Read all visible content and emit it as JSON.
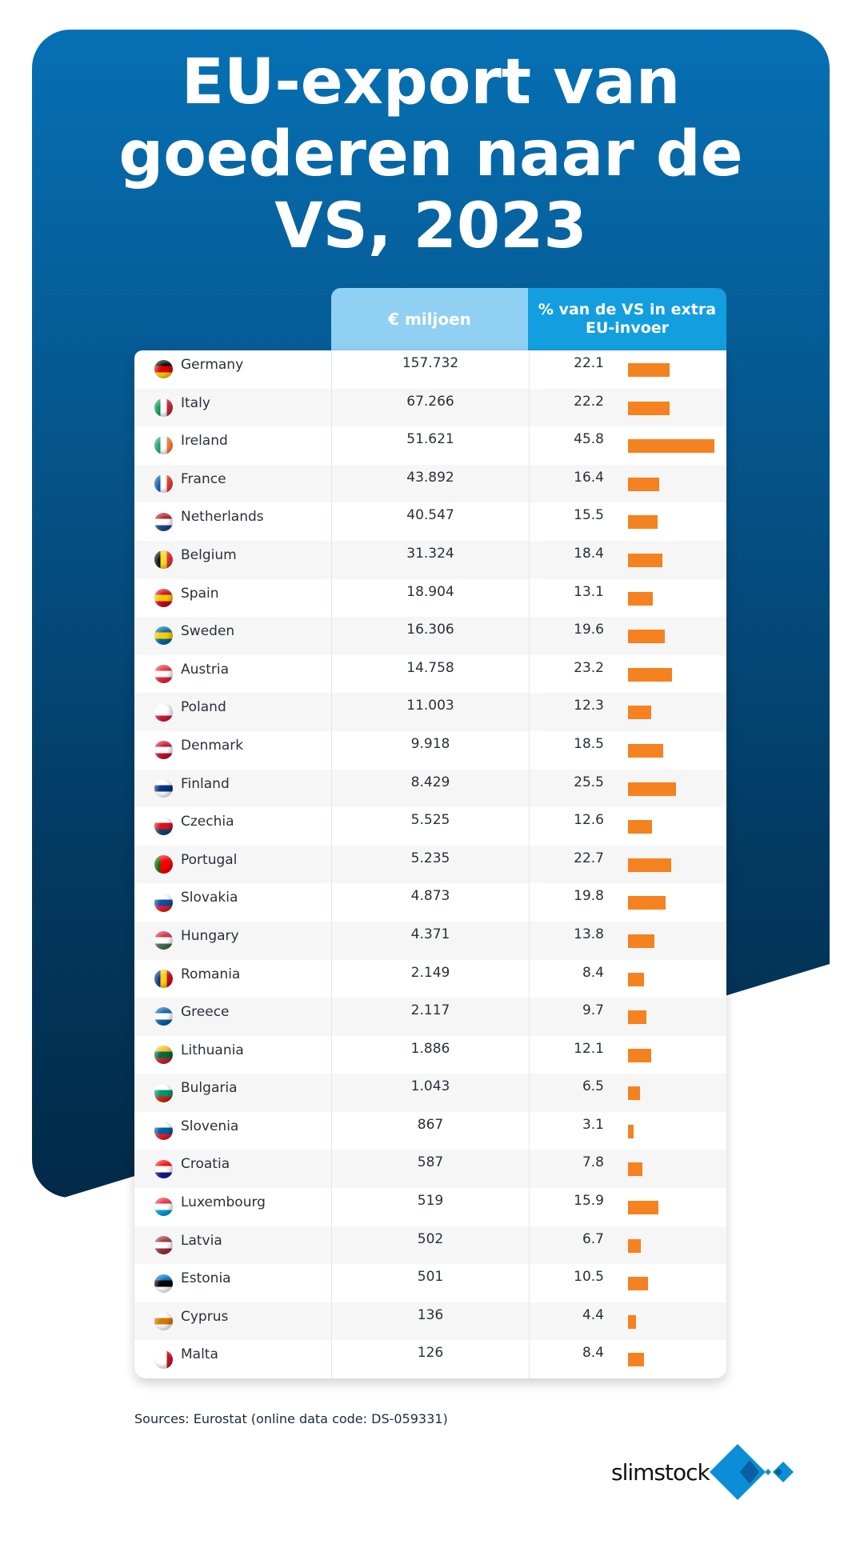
{
  "title_lines": [
    "EU-export van",
    "goederen naar de",
    "VS, 2023"
  ],
  "chart_data": {
    "type": "table",
    "columns": [
      "",
      "€ miljoen",
      "% van de VS in extra EU-invoer"
    ],
    "bar_color": "#f58220",
    "rows": [
      {
        "country": "Germany",
        "value": "157.732",
        "pct": 22.1,
        "flag": [
          "#000000",
          "#dd0000",
          "#ffce00"
        ],
        "dir": "h"
      },
      {
        "country": "Italy",
        "value": "67.266",
        "pct": 22.2,
        "flag": [
          "#009246",
          "#ffffff",
          "#ce2b37"
        ],
        "dir": "v"
      },
      {
        "country": "Ireland",
        "value": "51.621",
        "pct": 45.8,
        "flag": [
          "#169b62",
          "#ffffff",
          "#ff883e"
        ],
        "dir": "v"
      },
      {
        "country": "France",
        "value": "43.892",
        "pct": 16.4,
        "flag": [
          "#0055a4",
          "#ffffff",
          "#ef4135"
        ],
        "dir": "v"
      },
      {
        "country": "Netherlands",
        "value": "40.547",
        "pct": 15.5,
        "flag": [
          "#ae1c28",
          "#ffffff",
          "#21468b"
        ],
        "dir": "h"
      },
      {
        "country": "Belgium",
        "value": "31.324",
        "pct": 18.4,
        "flag": [
          "#000000",
          "#fdda24",
          "#ef3340"
        ],
        "dir": "v"
      },
      {
        "country": "Spain",
        "value": "18.904",
        "pct": 13.1,
        "flag": [
          "#c60b1e",
          "#ffc400",
          "#c60b1e"
        ],
        "dir": "h"
      },
      {
        "country": "Sweden",
        "value": "16.306",
        "pct": 19.6,
        "flag": [
          "#006aa7",
          "#fecc00",
          "#006aa7"
        ],
        "dir": "h"
      },
      {
        "country": "Austria",
        "value": "14.758",
        "pct": 23.2,
        "flag": [
          "#ed2939",
          "#ffffff",
          "#ed2939"
        ],
        "dir": "h"
      },
      {
        "country": "Poland",
        "value": "11.003",
        "pct": 12.3,
        "flag": [
          "#ffffff",
          "#ffffff",
          "#dc143c"
        ],
        "dir": "h"
      },
      {
        "country": "Denmark",
        "value": "9.918",
        "pct": 18.5,
        "flag": [
          "#c8102e",
          "#ffffff",
          "#c8102e"
        ],
        "dir": "h"
      },
      {
        "country": "Finland",
        "value": "8.429",
        "pct": 25.5,
        "flag": [
          "#ffffff",
          "#003580",
          "#ffffff"
        ],
        "dir": "h"
      },
      {
        "country": "Czechia",
        "value": "5.525",
        "pct": 12.6,
        "flag": [
          "#ffffff",
          "#d7141a",
          "#11457e"
        ],
        "dir": "h"
      },
      {
        "country": "Portugal",
        "value": "5.235",
        "pct": 22.7,
        "flag": [
          "#006600",
          "#ff0000",
          "#ff0000"
        ],
        "dir": "v"
      },
      {
        "country": "Slovakia",
        "value": "4.873",
        "pct": 19.8,
        "flag": [
          "#ffffff",
          "#0b4ea2",
          "#ee1c25"
        ],
        "dir": "h"
      },
      {
        "country": "Hungary",
        "value": "4.371",
        "pct": 13.8,
        "flag": [
          "#ce2939",
          "#ffffff",
          "#477050"
        ],
        "dir": "h"
      },
      {
        "country": "Romania",
        "value": "2.149",
        "pct": 8.4,
        "flag": [
          "#002b7f",
          "#fcd116",
          "#ce1126"
        ],
        "dir": "v"
      },
      {
        "country": "Greece",
        "value": "2.117",
        "pct": 9.7,
        "flag": [
          "#0d5eaf",
          "#ffffff",
          "#0d5eaf"
        ],
        "dir": "h"
      },
      {
        "country": "Lithuania",
        "value": "1.886",
        "pct": 12.1,
        "flag": [
          "#fdb913",
          "#006a44",
          "#c1272d"
        ],
        "dir": "h"
      },
      {
        "country": "Bulgaria",
        "value": "1.043",
        "pct": 6.5,
        "flag": [
          "#ffffff",
          "#00966e",
          "#d62612"
        ],
        "dir": "h"
      },
      {
        "country": "Slovenia",
        "value": "867",
        "pct": 3.1,
        "flag": [
          "#ffffff",
          "#005da4",
          "#ed1c24"
        ],
        "dir": "h"
      },
      {
        "country": "Croatia",
        "value": "587",
        "pct": 7.8,
        "flag": [
          "#ff0000",
          "#ffffff",
          "#171796"
        ],
        "dir": "h"
      },
      {
        "country": "Luxembourg",
        "value": "519",
        "pct": 15.9,
        "flag": [
          "#ed2939",
          "#ffffff",
          "#00a1de"
        ],
        "dir": "h"
      },
      {
        "country": "Latvia",
        "value": "502",
        "pct": 6.7,
        "flag": [
          "#9e3039",
          "#ffffff",
          "#9e3039"
        ],
        "dir": "h"
      },
      {
        "country": "Estonia",
        "value": "501",
        "pct": 10.5,
        "flag": [
          "#0072ce",
          "#000000",
          "#ffffff"
        ],
        "dir": "h"
      },
      {
        "country": "Cyprus",
        "value": "136",
        "pct": 4.4,
        "flag": [
          "#ffffff",
          "#d57800",
          "#ffffff"
        ],
        "dir": "h"
      },
      {
        "country": "Malta",
        "value": "126",
        "pct": 8.4,
        "flag": [
          "#ffffff",
          "#ffffff",
          "#cf142b"
        ],
        "dir": "v"
      }
    ]
  },
  "source": "Sources: Eurostat (online data code: DS-059331)",
  "logo": {
    "text": "slimstock",
    "color": "#0a8fd6"
  }
}
